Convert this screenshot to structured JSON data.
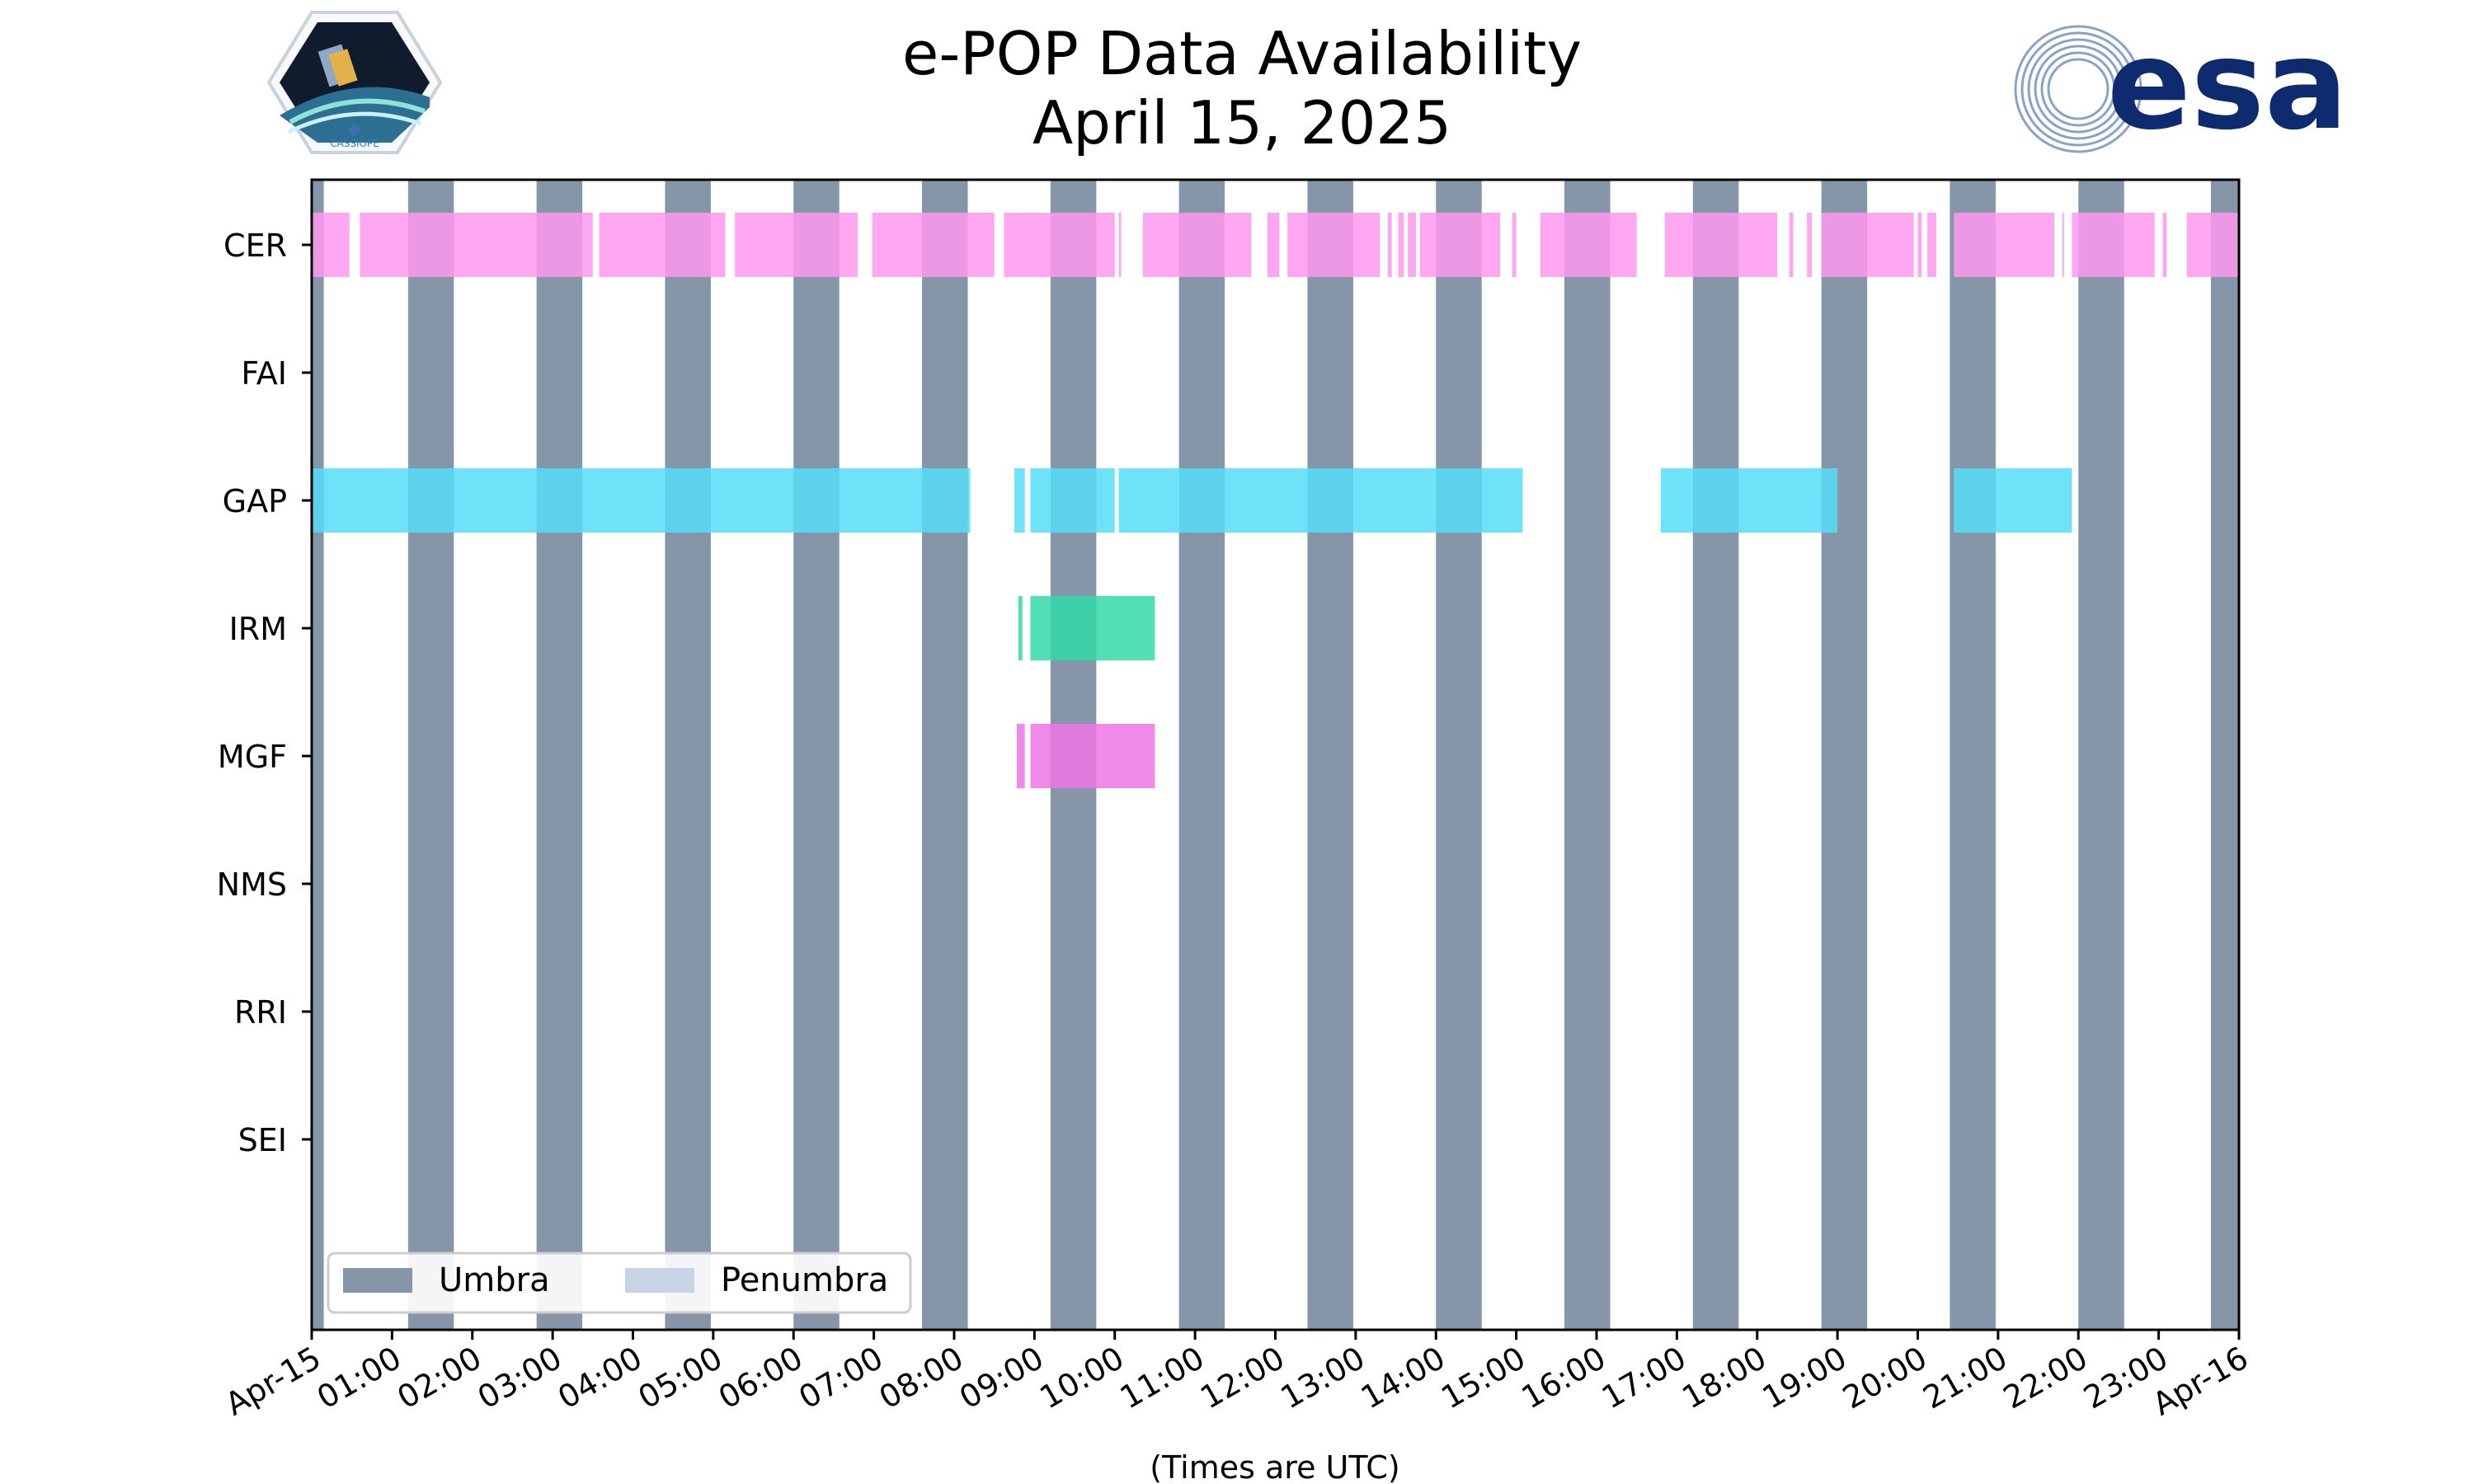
{
  "chart_data": {
    "type": "timeline",
    "title": [
      "e-POP Data Availability",
      "April 15, 2025"
    ],
    "xlabel": "(Times are UTC)",
    "xlim": [
      0,
      24
    ],
    "x_unit": "hours UTC",
    "x_tick_labels": [
      "Apr-15",
      "01:00",
      "02:00",
      "03:00",
      "04:00",
      "05:00",
      "06:00",
      "07:00",
      "08:00",
      "09:00",
      "10:00",
      "11:00",
      "12:00",
      "13:00",
      "14:00",
      "15:00",
      "16:00",
      "17:00",
      "18:00",
      "19:00",
      "20:00",
      "21:00",
      "22:00",
      "23:00",
      "Apr-16"
    ],
    "instruments": [
      "CER",
      "FAI",
      "GAP",
      "IRM",
      "MGF",
      "NMS",
      "RRI",
      "SEI"
    ],
    "umbra_intervals": [
      [
        0,
        0.15
      ],
      [
        1.2,
        1.77
      ],
      [
        2.8,
        3.37
      ],
      [
        4.4,
        4.97
      ],
      [
        6.0,
        6.57
      ],
      [
        7.6,
        8.17
      ],
      [
        9.2,
        9.77
      ],
      [
        10.8,
        11.37
      ],
      [
        12.4,
        12.97
      ],
      [
        14.0,
        14.57
      ],
      [
        15.6,
        16.17
      ],
      [
        17.2,
        17.77
      ],
      [
        18.8,
        19.37
      ],
      [
        20.4,
        20.97
      ],
      [
        22.0,
        22.57
      ],
      [
        23.65,
        24.0
      ]
    ],
    "penumbra_intervals": [],
    "series": [
      {
        "name": "CER",
        "color": "#ff99ee",
        "intervals": [
          [
            0,
            0.47
          ],
          [
            0.6,
            3.5
          ],
          [
            3.58,
            5.15
          ],
          [
            5.27,
            6.8
          ],
          [
            6.98,
            8.5
          ],
          [
            8.62,
            10.0
          ],
          [
            10.05,
            10.08
          ],
          [
            10.35,
            11.7
          ],
          [
            11.9,
            12.05
          ],
          [
            12.15,
            13.3
          ],
          [
            13.4,
            13.45
          ],
          [
            13.53,
            13.6
          ],
          [
            13.65,
            13.75
          ],
          [
            13.8,
            14.8
          ],
          [
            14.95,
            15.0
          ],
          [
            15.3,
            16.5
          ],
          [
            16.85,
            18.25
          ],
          [
            18.4,
            18.45
          ],
          [
            18.62,
            18.68
          ],
          [
            18.8,
            19.95
          ],
          [
            20.0,
            20.05
          ],
          [
            20.12,
            20.23
          ],
          [
            20.45,
            21.7
          ],
          [
            21.8,
            21.82
          ],
          [
            21.92,
            22.95
          ],
          [
            23.05,
            23.1
          ],
          [
            23.35,
            24.0
          ]
        ]
      },
      {
        "name": "FAI",
        "color": "#999999",
        "intervals": []
      },
      {
        "name": "GAP",
        "color": "#55ddf8",
        "intervals": [
          [
            0,
            8.2
          ],
          [
            8.75,
            8.88
          ],
          [
            8.95,
            10.0
          ],
          [
            10.05,
            15.08
          ],
          [
            16.8,
            19.0
          ],
          [
            20.45,
            21.92
          ]
        ]
      },
      {
        "name": "IRM",
        "color": "#33d9a6",
        "intervals": [
          [
            8.8,
            8.85
          ],
          [
            8.95,
            10.5
          ]
        ]
      },
      {
        "name": "MGF",
        "color": "#ef77e6",
        "intervals": [
          [
            8.78,
            8.88
          ],
          [
            8.95,
            10.5
          ]
        ]
      },
      {
        "name": "NMS",
        "color": "#999999",
        "intervals": []
      },
      {
        "name": "RRI",
        "color": "#999999",
        "intervals": []
      },
      {
        "name": "SEI",
        "color": "#999999",
        "intervals": []
      }
    ],
    "umbra_color": "#8596a8",
    "penumbra_color": "#c8d4e6",
    "legend": {
      "placement": "lower-left",
      "entries": [
        "Umbra",
        "Penumbra"
      ]
    },
    "grid": false
  },
  "logos": {
    "cassiope": "CASSIOPE",
    "esa": "esa"
  }
}
